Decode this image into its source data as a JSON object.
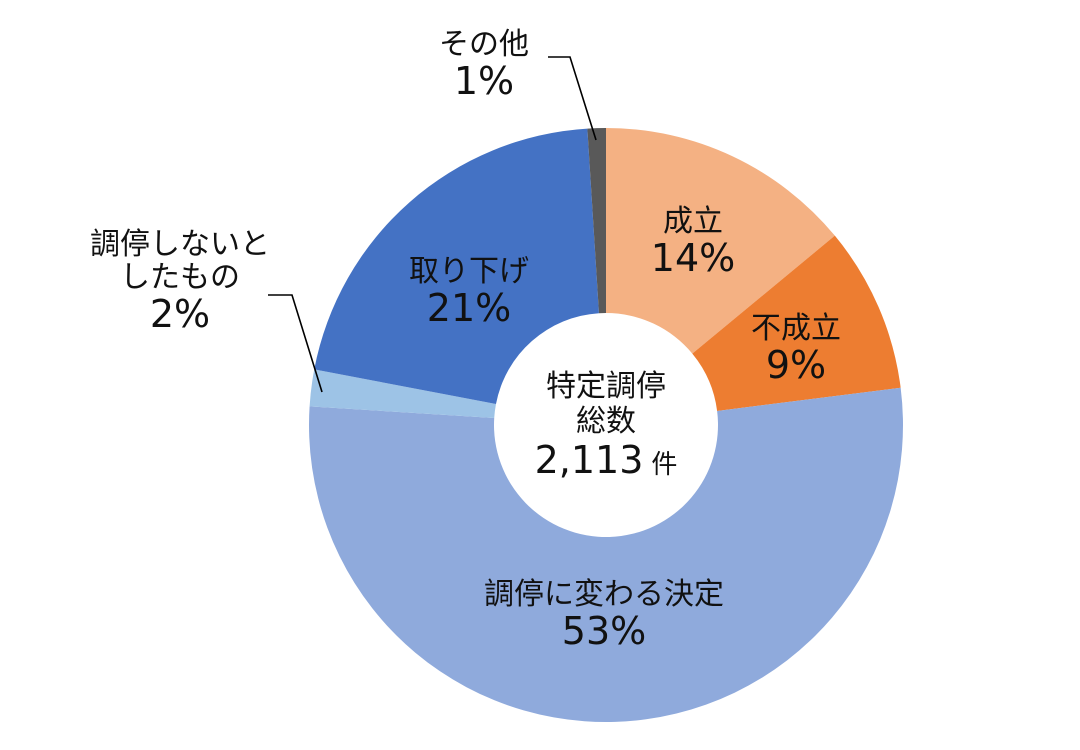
{
  "chart_data": {
    "type": "pie",
    "variant": "donut",
    "title": "",
    "center_label": {
      "line1": "特定調停",
      "line2": "総数",
      "total": "2,113",
      "unit": "件"
    },
    "start_angle": "12 o'clock",
    "direction": "clockwise",
    "categories": [
      "成立",
      "不成立",
      "調停に変わる決定",
      "調停しないとしたもの",
      "取り下げ",
      "その他"
    ],
    "values": [
      14,
      9,
      53,
      2,
      21,
      1
    ],
    "unit": "%",
    "colors": [
      "#F4B183",
      "#ED7D31",
      "#8FAADC",
      "#9DC3E6",
      "#4472C4",
      "#595959"
    ],
    "legend": "none (data labels)",
    "labels_outside_with_leader": [
      "調停しないとしたもの",
      "その他"
    ]
  },
  "labels": {
    "seirit": {
      "name": "成立",
      "pct": "14%"
    },
    "fuseiritsu": {
      "name": "不成立",
      "pct": "9%"
    },
    "kettei": {
      "name": "調停に変わる決定",
      "pct": "53%"
    },
    "shinai": {
      "name1": "調停しないと",
      "name2": "したもの",
      "pct": "2%"
    },
    "torisage": {
      "name": "取り下げ",
      "pct": "21%"
    },
    "sonota": {
      "name": "その他",
      "pct": "1%"
    }
  },
  "center": {
    "line1": "特定調停",
    "line2": "総数",
    "total": "2,113",
    "unit": "件"
  }
}
